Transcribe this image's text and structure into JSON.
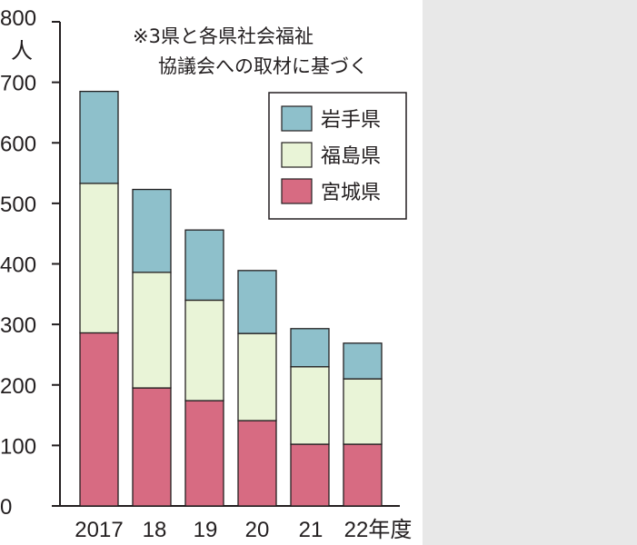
{
  "chart_data": {
    "type": "bar",
    "stacked": true,
    "categories": [
      "2017",
      "18",
      "19",
      "20",
      "21",
      "22年度"
    ],
    "series": [
      {
        "name": "宮城県",
        "values": [
          286,
          195,
          174,
          141,
          102,
          102
        ],
        "color": "#d76b82"
      },
      {
        "name": "福島県",
        "values": [
          247,
          191,
          166,
          144,
          128,
          108
        ],
        "color": "#e9f4d7"
      },
      {
        "name": "岩手県",
        "values": [
          152,
          137,
          116,
          104,
          63,
          59
        ],
        "color": "#8ec0cb"
      }
    ],
    "ylim": [
      0,
      800
    ],
    "yticks": [
      "0",
      "100",
      "200",
      "300",
      "400",
      "500",
      "600",
      "700",
      "800"
    ],
    "unit": "人",
    "note": [
      "※3県と各県社会福祉",
      "協議会への取材に基づく"
    ],
    "legend_order": [
      "岩手県",
      "福島県",
      "宮城県"
    ],
    "legend_position": "top-right",
    "grid": false
  }
}
